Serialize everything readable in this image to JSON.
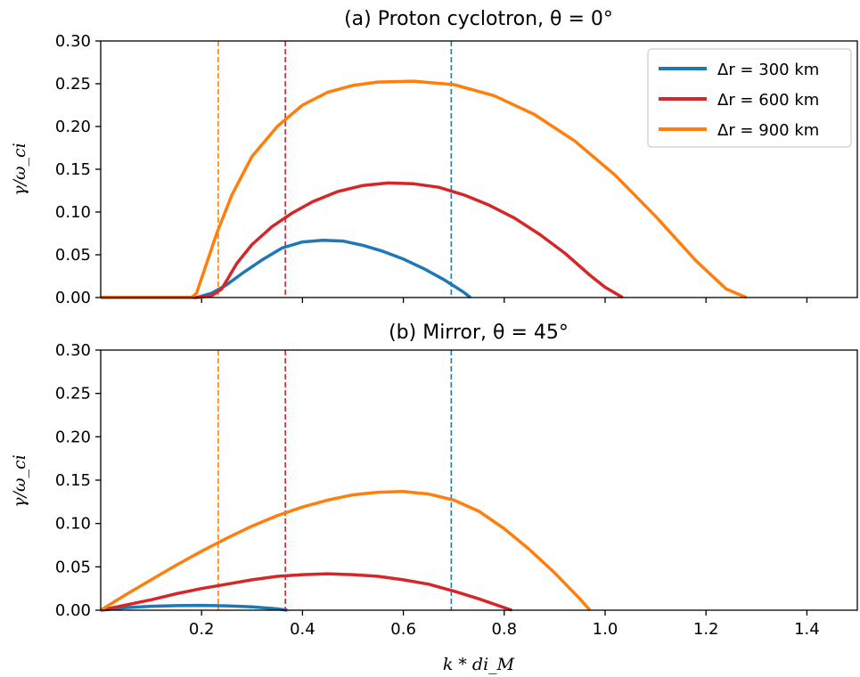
{
  "chart_data": [
    {
      "type": "line",
      "title": "(a) Proton cyclotron, θ = 0°",
      "ylabel": "γ/ω_ci",
      "xlabel": "",
      "xlim": [
        0.0,
        1.5
      ],
      "ylim": [
        0.0,
        0.3
      ],
      "yticks": [
        "0.00",
        "0.05",
        "0.10",
        "0.15",
        "0.20",
        "0.25",
        "0.30"
      ],
      "xticks": [
        "0.2",
        "0.4",
        "0.6",
        "0.8",
        "1.0",
        "1.2",
        "1.4"
      ],
      "xtick_labels_visible": false,
      "legend": "top-right",
      "series": [
        {
          "name": "Δr = 300 km",
          "color": "#1f77b4",
          "x": [
            0.0,
            0.19,
            0.22,
            0.25,
            0.28,
            0.32,
            0.36,
            0.4,
            0.44,
            0.48,
            0.52,
            0.56,
            0.6,
            0.64,
            0.68,
            0.72,
            0.733
          ],
          "y": [
            0.0,
            0.0,
            0.005,
            0.015,
            0.028,
            0.044,
            0.058,
            0.065,
            0.067,
            0.066,
            0.061,
            0.054,
            0.045,
            0.034,
            0.021,
            0.006,
            0.0
          ]
        },
        {
          "name": "Δr = 600 km",
          "color": "#d62728",
          "x": [
            0.0,
            0.19,
            0.22,
            0.24,
            0.27,
            0.3,
            0.34,
            0.38,
            0.42,
            0.47,
            0.52,
            0.57,
            0.62,
            0.67,
            0.72,
            0.77,
            0.82,
            0.87,
            0.92,
            0.97,
            1.0,
            1.035
          ],
          "y": [
            0.0,
            0.0,
            0.002,
            0.01,
            0.04,
            0.062,
            0.083,
            0.099,
            0.112,
            0.124,
            0.131,
            0.134,
            0.133,
            0.129,
            0.12,
            0.108,
            0.093,
            0.074,
            0.052,
            0.026,
            0.012,
            0.0
          ]
        },
        {
          "name": "Δr = 900 km",
          "color": "#ff7f0e",
          "x": [
            0.0,
            0.1,
            0.18,
            0.19,
            0.21,
            0.23,
            0.26,
            0.3,
            0.35,
            0.4,
            0.45,
            0.5,
            0.55,
            0.62,
            0.7,
            0.78,
            0.86,
            0.94,
            1.02,
            1.1,
            1.18,
            1.24,
            1.28
          ],
          "y": [
            0.0,
            0.0,
            0.0,
            0.005,
            0.04,
            0.075,
            0.12,
            0.165,
            0.2,
            0.225,
            0.24,
            0.248,
            0.252,
            0.253,
            0.249,
            0.236,
            0.214,
            0.183,
            0.143,
            0.095,
            0.043,
            0.01,
            0.0
          ]
        }
      ],
      "vlines": [
        {
          "x": 0.233,
          "color": "#ff7f0e"
        },
        {
          "x": 0.366,
          "color": "#d62728"
        },
        {
          "x": 0.695,
          "color": "#1f77b4"
        }
      ]
    },
    {
      "type": "line",
      "title": "(b) Mirror, θ = 45°",
      "ylabel": "γ/ω_ci",
      "xlabel": "k * di_M",
      "xlim": [
        0.0,
        1.5
      ],
      "ylim": [
        0.0,
        0.3
      ],
      "yticks": [
        "0.00",
        "0.05",
        "0.10",
        "0.15",
        "0.20",
        "0.25",
        "0.30"
      ],
      "xticks": [
        "0.2",
        "0.4",
        "0.6",
        "0.8",
        "1.0",
        "1.2",
        "1.4"
      ],
      "xtick_labels_visible": true,
      "series": [
        {
          "name": "Δr = 300 km",
          "color": "#1f77b4",
          "x": [
            0.0,
            0.05,
            0.1,
            0.15,
            0.2,
            0.25,
            0.3,
            0.35,
            0.37
          ],
          "y": [
            0.0,
            0.003,
            0.0045,
            0.0052,
            0.0055,
            0.005,
            0.0038,
            0.0015,
            0.0
          ]
        },
        {
          "name": "Δr = 600 km",
          "color": "#d62728",
          "x": [
            0.0,
            0.05,
            0.1,
            0.15,
            0.2,
            0.25,
            0.3,
            0.35,
            0.4,
            0.45,
            0.5,
            0.55,
            0.6,
            0.65,
            0.7,
            0.75,
            0.8,
            0.815
          ],
          "y": [
            0.0,
            0.006,
            0.012,
            0.019,
            0.025,
            0.03,
            0.035,
            0.039,
            0.041,
            0.042,
            0.041,
            0.039,
            0.035,
            0.03,
            0.022,
            0.013,
            0.003,
            0.0
          ]
        },
        {
          "name": "Δr = 900 km",
          "color": "#ff7f0e",
          "x": [
            0.0,
            0.05,
            0.1,
            0.15,
            0.2,
            0.25,
            0.3,
            0.35,
            0.4,
            0.45,
            0.5,
            0.55,
            0.6,
            0.65,
            0.7,
            0.75,
            0.8,
            0.85,
            0.9,
            0.95,
            0.97
          ],
          "y": [
            0.0,
            0.018,
            0.035,
            0.052,
            0.068,
            0.083,
            0.097,
            0.109,
            0.119,
            0.127,
            0.133,
            0.136,
            0.137,
            0.134,
            0.127,
            0.114,
            0.094,
            0.07,
            0.043,
            0.013,
            0.0
          ]
        }
      ],
      "vlines": [
        {
          "x": 0.233,
          "color": "#ff7f0e"
        },
        {
          "x": 0.366,
          "color": "#d62728"
        },
        {
          "x": 0.695,
          "color": "#1f77b4"
        }
      ]
    }
  ]
}
